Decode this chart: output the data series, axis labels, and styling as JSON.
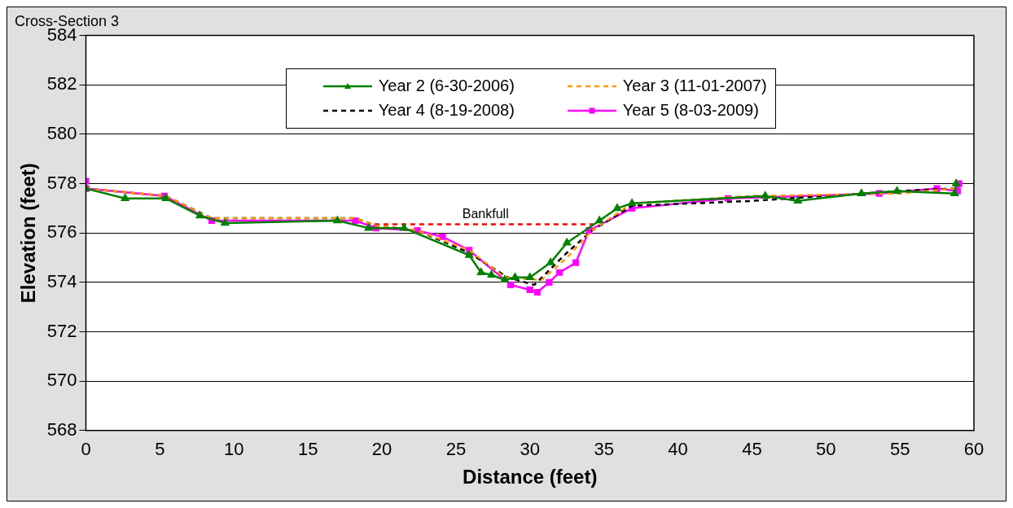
{
  "chart_data": {
    "type": "line",
    "title": "Cross-Section 3",
    "xlabel": "Distance (feet)",
    "ylabel": "Elevation (feet)",
    "xlim": [
      0,
      60
    ],
    "xticks": [
      0,
      5,
      10,
      15,
      20,
      25,
      30,
      35,
      40,
      45,
      50,
      55,
      60
    ],
    "ylim": [
      568,
      584
    ],
    "yticks": [
      568,
      570,
      572,
      574,
      576,
      578,
      580,
      582,
      584
    ],
    "grid": "y",
    "legend": "top",
    "annotations": [
      {
        "text": "Bankfull",
        "x": 27,
        "y": 576.35
      }
    ],
    "series": [
      {
        "name": "Year 2 (6-30-2006)",
        "color": "#008000",
        "marker": "triangle",
        "line_style": "solid",
        "x": [
          0,
          2.65,
          5.4,
          7.7,
          9.4,
          17.0,
          19.1,
          21.5,
          25.9,
          26.7,
          27.4,
          28.3,
          29.0,
          30.0,
          31.4,
          32.5,
          34.7,
          35.9,
          36.9,
          45.9,
          48.1,
          52.4,
          54.8,
          58.7,
          58.8
        ],
        "values": [
          577.8,
          577.4,
          577.4,
          576.7,
          576.4,
          576.5,
          576.2,
          576.2,
          575.1,
          574.4,
          574.3,
          574.1,
          574.2,
          574.2,
          574.8,
          575.6,
          576.5,
          577.0,
          577.2,
          577.5,
          577.3,
          577.6,
          577.7,
          577.6,
          578.0
        ]
      },
      {
        "name": "Year 3 (11-01-2007)",
        "color": "#ff9900",
        "marker": "none",
        "line_style": "dashed",
        "x": [
          0,
          5.4,
          8.5,
          18.2,
          19.6,
          22.4,
          25.9,
          28.3,
          30.8,
          32.5,
          34.2,
          36.9,
          45,
          55,
          58.7
        ],
        "values": [
          577.8,
          577.5,
          576.6,
          576.6,
          576.3,
          576.1,
          575.3,
          574.2,
          574.1,
          575.0,
          576.1,
          577.2,
          577.5,
          577.6,
          577.8
        ]
      },
      {
        "name": "Year 4 (8-19-2008)",
        "color": "#000000",
        "marker": "none",
        "line_style": "dashed",
        "x": [
          0,
          5.4,
          8.5,
          18.2,
          19.6,
          22.4,
          25.9,
          28.5,
          30.3,
          32.5,
          34.2,
          36.9,
          45,
          55,
          58.7
        ],
        "values": [
          577.8,
          577.5,
          576.6,
          576.6,
          576.3,
          576.1,
          575.2,
          574.2,
          573.9,
          575.2,
          576.1,
          577.1,
          577.3,
          577.7,
          577.8
        ]
      },
      {
        "name": "Year 5 (8-03-2009)",
        "color": "#ff00ff",
        "marker": "square",
        "line_style": "solid",
        "x": [
          0,
          0,
          5.3,
          8.5,
          18.2,
          19.6,
          22.4,
          24.1,
          25.9,
          28.7,
          30.0,
          30.5,
          31.3,
          32.0,
          33.1,
          34.0,
          36.9,
          43.4,
          53.6,
          57.5,
          58.9,
          59.0
        ],
        "values": [
          578.1,
          577.8,
          577.5,
          576.5,
          576.5,
          576.2,
          576.1,
          575.85,
          575.3,
          573.9,
          573.7,
          573.6,
          574.0,
          574.4,
          574.8,
          576.1,
          577.0,
          577.4,
          577.6,
          577.8,
          577.7,
          578.0
        ]
      },
      {
        "color": "#ff0000",
        "marker": "none",
        "line_style": "dashed",
        "x": [
          19.5,
          34.5
        ],
        "values": [
          576.35,
          576.35
        ]
      }
    ]
  }
}
